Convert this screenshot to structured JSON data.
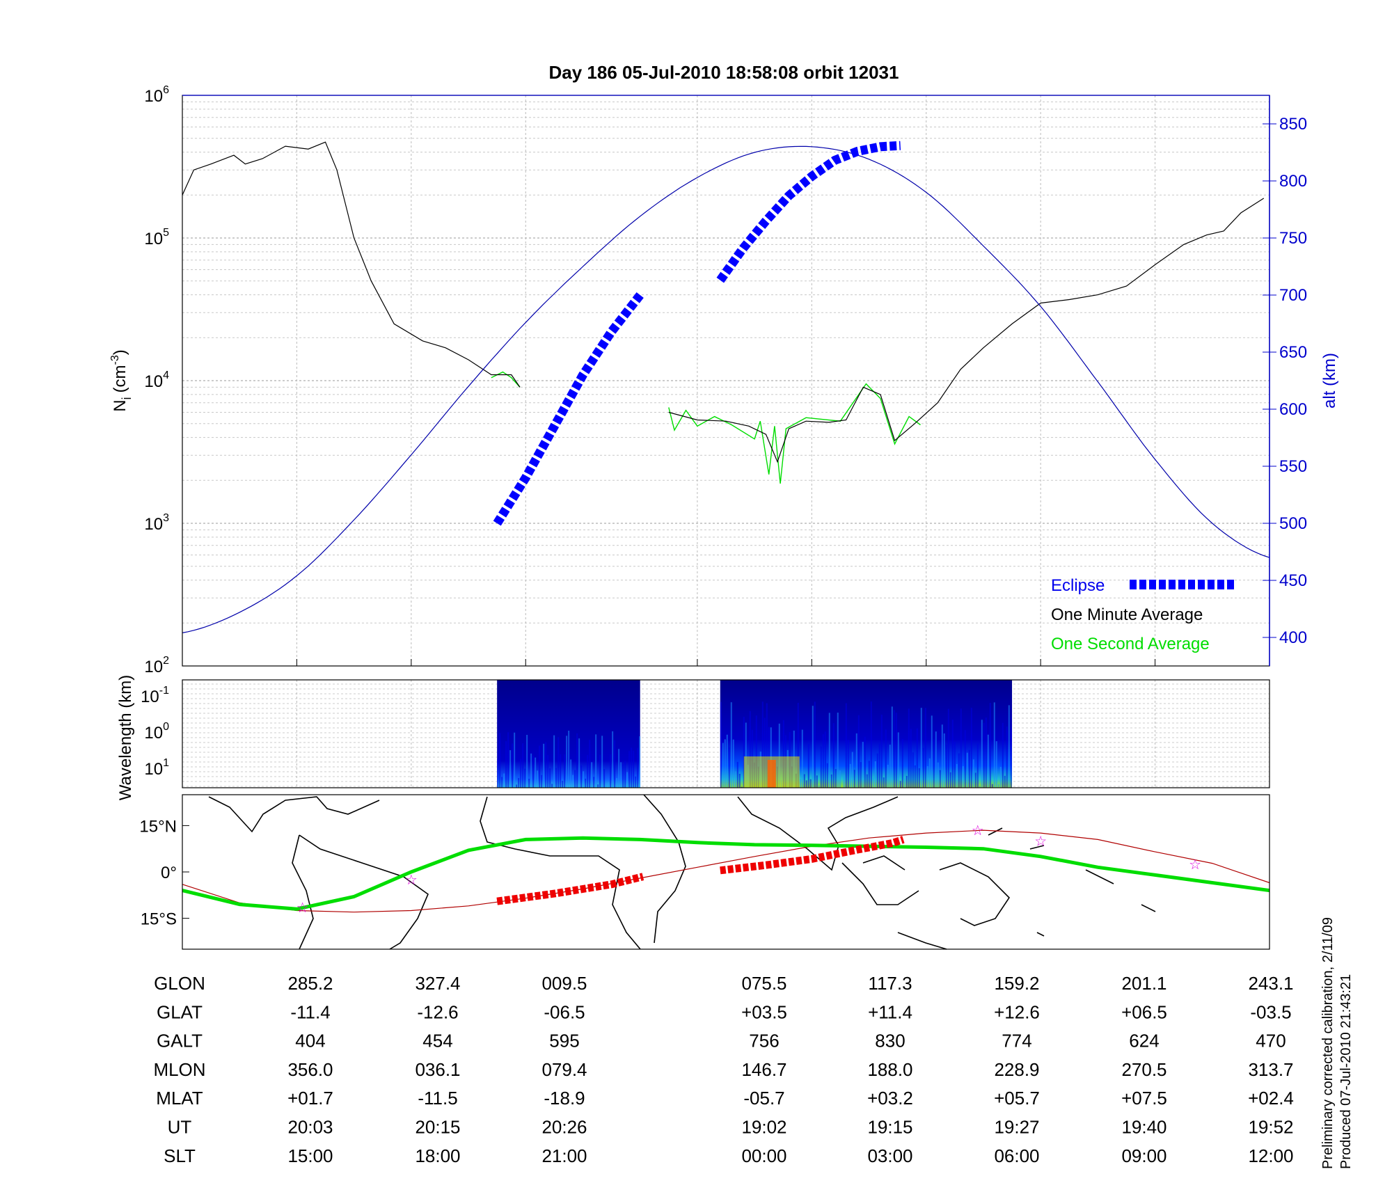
{
  "title": "Day 186  05-Jul-2010 18:58:08   orbit 12031",
  "colors": {
    "eclipse": "#0000ff",
    "one_minute": "#000000",
    "one_second": "#00dd00",
    "altitude": "#0000aa",
    "track": "#00dd00",
    "field_line": "#b00000",
    "eclipse_track": "#ee0000",
    "star": "#dd00dd"
  },
  "chart_data": [
    {
      "panel": "density",
      "type": "line",
      "ylabel": "N",
      "ylabel_sub": "i",
      "ylabel_unit": "(cm",
      "ylabel_exp": "-3",
      "ylabel_close": ")",
      "yscale": "log",
      "ylim": [
        100,
        1000000
      ],
      "ytick_base": "10",
      "ytick_exps": [
        "2",
        "3",
        "4",
        "5",
        "6"
      ],
      "y2label": "alt (km)",
      "y2lim": [
        375,
        875
      ],
      "y2ticks": [
        "400",
        "450",
        "500",
        "550",
        "600",
        "650",
        "700",
        "750",
        "800",
        "850"
      ],
      "grid": true,
      "legend": {
        "position": "bottom-right",
        "eclipse": "Eclipse",
        "one_minute": "One Minute Average",
        "one_second": "One Second Average"
      },
      "series": [
        {
          "name": "One Minute Average",
          "axis": "left",
          "segments": [
            [
              [
                0,
                200000
              ],
              [
                0.2,
                300000
              ],
              [
                0.5,
                330000
              ],
              [
                0.9,
                380000
              ],
              [
                1.1,
                330000
              ],
              [
                1.4,
                360000
              ],
              [
                1.8,
                440000
              ],
              [
                2.2,
                420000
              ],
              [
                2.5,
                470000
              ],
              [
                2.7,
                300000
              ],
              [
                3.0,
                100000
              ],
              [
                3.3,
                50000
              ],
              [
                3.7,
                25000
              ],
              [
                4.2,
                19000
              ],
              [
                4.6,
                17000
              ],
              [
                5.0,
                14000
              ],
              [
                5.4,
                11000
              ],
              [
                5.75,
                11000
              ],
              [
                5.9,
                9000
              ]
            ],
            [
              [
                8.5,
                6000
              ],
              [
                9.0,
                5300
              ],
              [
                9.5,
                5200
              ],
              [
                9.9,
                4800
              ],
              [
                10.2,
                4200
              ],
              [
                10.4,
                2700
              ],
              [
                10.6,
                4600
              ],
              [
                10.9,
                5200
              ],
              [
                11.3,
                5100
              ],
              [
                11.6,
                5300
              ],
              [
                11.9,
                9000
              ],
              [
                12.2,
                8000
              ],
              [
                12.45,
                3800
              ],
              [
                12.8,
                5000
              ],
              [
                13.2,
                7000
              ],
              [
                13.6,
                12000
              ],
              [
                14.0,
                17000
              ],
              [
                14.5,
                25000
              ],
              [
                15.0,
                35000
              ],
              [
                15.5,
                37000
              ],
              [
                16.0,
                40000
              ],
              [
                16.5,
                46000
              ],
              [
                17.0,
                65000
              ],
              [
                17.5,
                90000
              ],
              [
                17.9,
                105000
              ],
              [
                18.2,
                112000
              ],
              [
                18.5,
                150000
              ],
              [
                18.9,
                190000
              ]
            ]
          ]
        },
        {
          "name": "One Second Average",
          "axis": "left",
          "segments": [
            [
              [
                5.4,
                10500
              ],
              [
                5.6,
                11500
              ],
              [
                5.75,
                10500
              ],
              [
                5.9,
                9000
              ]
            ],
            [
              [
                8.5,
                6500
              ],
              [
                8.6,
                4500
              ],
              [
                8.8,
                6200
              ],
              [
                9.0,
                4800
              ],
              [
                9.3,
                5600
              ],
              [
                9.6,
                4900
              ],
              [
                10.0,
                3900
              ],
              [
                10.1,
                5200
              ],
              [
                10.25,
                2200
              ],
              [
                10.35,
                4800
              ],
              [
                10.45,
                1900
              ],
              [
                10.55,
                4600
              ],
              [
                10.9,
                5500
              ],
              [
                11.5,
                5200
              ],
              [
                11.95,
                9500
              ],
              [
                12.2,
                7500
              ],
              [
                12.45,
                3600
              ],
              [
                12.7,
                5600
              ],
              [
                12.9,
                4900
              ]
            ]
          ]
        },
        {
          "name": "alt (km)",
          "axis": "right",
          "x": [
            0,
            1,
            2,
            3,
            4,
            5,
            6,
            7,
            8,
            9,
            10,
            11,
            12,
            13,
            14,
            15,
            16,
            17,
            18,
            19
          ],
          "y": [
            404,
            422,
            454,
            503,
            560,
            620,
            676,
            725,
            769,
            803,
            825,
            830,
            819,
            790,
            743,
            690,
            624,
            556,
            500,
            470
          ]
        },
        {
          "name": "Eclipse",
          "axis": "right",
          "segments": [
            [
              [
                5.5,
                500
              ],
              [
                6.0,
                540
              ],
              [
                6.5,
                585
              ],
              [
                7.0,
                630
              ],
              [
                7.5,
                668
              ],
              [
                8.0,
                700
              ]
            ],
            [
              [
                9.4,
                713
              ],
              [
                9.8,
                741
              ],
              [
                10.2,
                765
              ],
              [
                10.6,
                787
              ],
              [
                11.0,
                804
              ],
              [
                11.4,
                818
              ],
              [
                11.8,
                826
              ],
              [
                12.2,
                830
              ],
              [
                12.55,
                831
              ]
            ]
          ]
        }
      ]
    },
    {
      "panel": "spectrogram",
      "type": "heatmap",
      "ylabel": "Wavelength (km)",
      "ytick_base": "10",
      "yticks_exp": [
        "-1",
        "0",
        "1"
      ],
      "blocks": [
        {
          "x_start": 5.5,
          "x_end": 8.0,
          "intensity": 0.4
        },
        {
          "x_start": 9.4,
          "x_end": 14.5,
          "intensity": 1.0
        }
      ]
    },
    {
      "panel": "map",
      "type": "line",
      "yticks": [
        "15°N",
        "0°",
        "15°S"
      ],
      "ylim": [
        -25,
        25
      ],
      "series": [
        {
          "name": "track",
          "x": [
            0,
            1,
            2,
            3,
            4,
            5,
            6,
            7,
            8,
            9,
            10,
            11,
            12,
            13,
            14,
            15,
            16,
            17,
            18,
            19
          ],
          "y": [
            -6,
            -10.5,
            -12,
            -8,
            0,
            7,
            10.5,
            11,
            10.5,
            9.5,
            8.8,
            8.6,
            8.3,
            8,
            7.5,
            5,
            1.5,
            -1,
            -3.5,
            -6
          ]
        },
        {
          "name": "field line",
          "x": [
            0,
            1,
            2,
            3,
            4,
            5,
            6,
            7,
            8,
            9,
            10,
            11,
            12,
            13,
            14,
            15,
            16,
            17,
            18,
            19
          ],
          "y": [
            -4,
            -10,
            -12.5,
            -13,
            -12.5,
            -11,
            -8.5,
            -5.5,
            -2,
            1.5,
            5,
            8.3,
            11,
            12.6,
            13.5,
            12.6,
            10.5,
            6.5,
            2.8,
            -3.5
          ]
        },
        {
          "name": "eclipse track",
          "segments": [
            [
              [
                5.5,
                -9.5
              ],
              [
                6.5,
                -7
              ],
              [
                7.5,
                -4
              ],
              [
                8.05,
                -1.5
              ]
            ],
            [
              [
                9.4,
                0.5
              ],
              [
                10.2,
                2.2
              ],
              [
                11.0,
                4.2
              ],
              [
                11.8,
                7.2
              ],
              [
                12.4,
                9.3
              ],
              [
                12.6,
                10.5
              ]
            ]
          ]
        },
        {
          "name": "stars",
          "x": [
            2.1,
            4.0,
            13.9,
            15.0,
            17.7
          ],
          "y": [
            -11.5,
            -2.5,
            13.5,
            10,
            2.5
          ]
        }
      ]
    }
  ],
  "table": {
    "rows": [
      {
        "label": "GLON",
        "values": [
          "285.2",
          "327.4",
          "009.5",
          "075.5",
          "117.3",
          "159.2",
          "201.1",
          "243.1"
        ]
      },
      {
        "label": "GLAT",
        "values": [
          "-11.4",
          "-12.6",
          "-06.5",
          "+03.5",
          "+11.4",
          "+12.6",
          "+06.5",
          "-03.5"
        ]
      },
      {
        "label": "GALT",
        "values": [
          "404",
          "454",
          "595",
          "756",
          "830",
          "774",
          "624",
          "470"
        ]
      },
      {
        "label": "MLON",
        "values": [
          "356.0",
          "036.1",
          "079.4",
          "146.7",
          "188.0",
          "228.9",
          "270.5",
          "313.7"
        ]
      },
      {
        "label": "MLAT",
        "values": [
          "+01.7",
          "-11.5",
          "-18.9",
          "-05.7",
          "+03.2",
          "+05.7",
          "+07.5",
          "+02.4"
        ]
      },
      {
        "label": "UT",
        "values": [
          "20:03",
          "20:15",
          "20:26",
          "19:02",
          "19:15",
          "19:27",
          "19:40",
          "19:52"
        ]
      },
      {
        "label": "SLT",
        "values": [
          "15:00",
          "18:00",
          "21:00",
          "00:00",
          "03:00",
          "06:00",
          "09:00",
          "12:00"
        ]
      }
    ]
  },
  "footnote": {
    "line1": "Preliminary corrected calibration, 2/11/09",
    "line2": "Produced 07-Jul-2010 21:43:21"
  }
}
